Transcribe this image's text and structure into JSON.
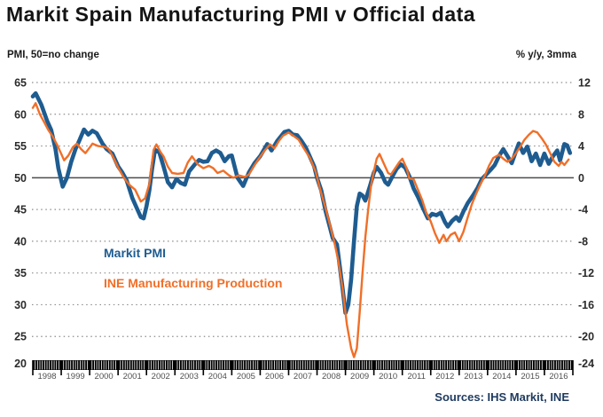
{
  "header": {
    "title": "Markit Spain Manufacturing PMI v Official data"
  },
  "axis_captions": {
    "left": "PMI, 50=no change",
    "right": "% y/y, 3mma"
  },
  "legend": {
    "pmi": "Markit PMI",
    "ine": "INE Manufacturing Production"
  },
  "source": "Sources: IHS Markit, INE",
  "colors": {
    "pmi": "#1e5c90",
    "ine": "#f06f28",
    "grid": "#8c8c8c",
    "zero_line": "#4d4d4d",
    "axis_bar": "#000000",
    "tick_label": "#4f4f4f",
    "axis_value": "#2b2b2b",
    "source_text": "#1e3a5f",
    "title_text": "#141414"
  },
  "chart_data": {
    "type": "line",
    "title": "Markit Spain Manufacturing PMI v Official data",
    "left_axis": {
      "label": "PMI, 50=no change",
      "ticks": [
        65,
        60,
        55,
        50,
        45,
        40,
        35,
        30,
        25,
        20
      ],
      "range": [
        20,
        65
      ]
    },
    "right_axis": {
      "label": "% y/y, 3mma",
      "ticks": [
        12,
        8,
        4,
        0,
        -4,
        -8,
        -12,
        -16,
        -20,
        -24
      ],
      "range": [
        -24,
        12
      ]
    },
    "x_axis": {
      "years": [
        "1998",
        "1999",
        "2000",
        "2001",
        "2002",
        "2003",
        "2004",
        "2005",
        "2006",
        "2007",
        "2008",
        "2009",
        "2010",
        "2011",
        "2012",
        "2013",
        "2014",
        "2015",
        "2016"
      ],
      "range": [
        1998,
        2017
      ]
    },
    "zero_reference": {
      "left": 50,
      "right": 0
    },
    "grid": "dotted horizontal",
    "legend_position": "inside-left",
    "series": [
      {
        "name": "Markit PMI",
        "axis": "left",
        "color": "#1e5c90",
        "points": [
          [
            1998.0,
            62.8
          ],
          [
            1998.1,
            63.3
          ],
          [
            1998.3,
            61.5
          ],
          [
            1998.5,
            59.0
          ],
          [
            1998.65,
            57.5
          ],
          [
            1998.8,
            54.5
          ],
          [
            1998.9,
            51.5
          ],
          [
            1999.05,
            48.6
          ],
          [
            1999.2,
            50.0
          ],
          [
            1999.35,
            52.5
          ],
          [
            1999.5,
            54.5
          ],
          [
            1999.65,
            56.0
          ],
          [
            1999.8,
            57.6
          ],
          [
            1999.95,
            56.8
          ],
          [
            2000.1,
            57.4
          ],
          [
            2000.25,
            57.0
          ],
          [
            2000.45,
            55.4
          ],
          [
            2000.6,
            54.5
          ],
          [
            2000.8,
            53.8
          ],
          [
            2001.0,
            51.8
          ],
          [
            2001.15,
            50.8
          ],
          [
            2001.3,
            49.6
          ],
          [
            2001.5,
            46.8
          ],
          [
            2001.65,
            45.3
          ],
          [
            2001.8,
            43.8
          ],
          [
            2001.9,
            43.6
          ],
          [
            2002.0,
            45.5
          ],
          [
            2002.1,
            48.0
          ],
          [
            2002.2,
            51.5
          ],
          [
            2002.3,
            54.4
          ],
          [
            2002.45,
            54.0
          ],
          [
            2002.6,
            51.8
          ],
          [
            2002.75,
            49.3
          ],
          [
            2002.9,
            48.5
          ],
          [
            2003.05,
            49.8
          ],
          [
            2003.2,
            49.2
          ],
          [
            2003.35,
            48.9
          ],
          [
            2003.5,
            51.0
          ],
          [
            2003.7,
            52.1
          ],
          [
            2003.85,
            52.8
          ],
          [
            2004.0,
            52.5
          ],
          [
            2004.15,
            52.6
          ],
          [
            2004.3,
            53.9
          ],
          [
            2004.45,
            54.3
          ],
          [
            2004.6,
            53.9
          ],
          [
            2004.75,
            52.6
          ],
          [
            2004.9,
            53.4
          ],
          [
            2005.0,
            53.5
          ],
          [
            2005.2,
            50.0
          ],
          [
            2005.4,
            48.7
          ],
          [
            2005.6,
            50.8
          ],
          [
            2005.8,
            52.3
          ],
          [
            2006.0,
            53.4
          ],
          [
            2006.25,
            55.3
          ],
          [
            2006.4,
            54.3
          ],
          [
            2006.6,
            55.8
          ],
          [
            2006.85,
            57.2
          ],
          [
            2007.0,
            57.4
          ],
          [
            2007.15,
            56.8
          ],
          [
            2007.3,
            56.7
          ],
          [
            2007.45,
            55.8
          ],
          [
            2007.6,
            54.8
          ],
          [
            2007.75,
            53.3
          ],
          [
            2007.9,
            51.8
          ],
          [
            2008.0,
            50.0
          ],
          [
            2008.15,
            48.0
          ],
          [
            2008.3,
            44.8
          ],
          [
            2008.45,
            42.2
          ],
          [
            2008.55,
            40.5
          ],
          [
            2008.7,
            39.5
          ],
          [
            2008.8,
            36.0
          ],
          [
            2008.9,
            32.5
          ],
          [
            2009.0,
            28.7
          ],
          [
            2009.1,
            30.0
          ],
          [
            2009.2,
            34.0
          ],
          [
            2009.3,
            40.0
          ],
          [
            2009.4,
            45.5
          ],
          [
            2009.5,
            47.5
          ],
          [
            2009.6,
            47.2
          ],
          [
            2009.7,
            46.4
          ],
          [
            2009.85,
            48.5
          ],
          [
            2010.0,
            50.8
          ],
          [
            2010.1,
            51.7
          ],
          [
            2010.25,
            50.8
          ],
          [
            2010.4,
            49.3
          ],
          [
            2010.5,
            48.9
          ],
          [
            2010.65,
            50.2
          ],
          [
            2010.8,
            51.4
          ],
          [
            2010.95,
            52.1
          ],
          [
            2011.1,
            51.6
          ],
          [
            2011.25,
            50.2
          ],
          [
            2011.4,
            48.3
          ],
          [
            2011.55,
            47.0
          ],
          [
            2011.7,
            45.5
          ],
          [
            2011.9,
            43.6
          ],
          [
            2012.05,
            44.3
          ],
          [
            2012.2,
            44.1
          ],
          [
            2012.35,
            44.5
          ],
          [
            2012.5,
            43.0
          ],
          [
            2012.6,
            42.3
          ],
          [
            2012.75,
            43.2
          ],
          [
            2012.9,
            43.8
          ],
          [
            2013.0,
            43.2
          ],
          [
            2013.15,
            44.7
          ],
          [
            2013.3,
            46.0
          ],
          [
            2013.5,
            47.3
          ],
          [
            2013.65,
            48.4
          ],
          [
            2013.8,
            49.8
          ],
          [
            2013.95,
            50.5
          ],
          [
            2014.1,
            51.2
          ],
          [
            2014.25,
            52.0
          ],
          [
            2014.4,
            53.4
          ],
          [
            2014.55,
            54.5
          ],
          [
            2014.7,
            53.4
          ],
          [
            2014.85,
            52.3
          ],
          [
            2015.0,
            54.2
          ],
          [
            2015.1,
            55.4
          ],
          [
            2015.25,
            53.9
          ],
          [
            2015.4,
            54.9
          ],
          [
            2015.55,
            52.6
          ],
          [
            2015.7,
            53.8
          ],
          [
            2015.85,
            52.0
          ],
          [
            2016.0,
            53.8
          ],
          [
            2016.15,
            52.2
          ],
          [
            2016.3,
            53.4
          ],
          [
            2016.45,
            54.3
          ],
          [
            2016.55,
            52.7
          ],
          [
            2016.7,
            55.3
          ],
          [
            2016.8,
            55.1
          ],
          [
            2016.9,
            53.9
          ]
        ]
      },
      {
        "name": "INE Manufacturing Production",
        "axis": "right",
        "color": "#f06f28",
        "points": [
          [
            1998.0,
            8.8
          ],
          [
            1998.1,
            9.4
          ],
          [
            1998.25,
            8.0
          ],
          [
            1998.4,
            7.0
          ],
          [
            1998.55,
            6.0
          ],
          [
            1998.7,
            5.2
          ],
          [
            1998.85,
            4.2
          ],
          [
            1999.0,
            3.0
          ],
          [
            1999.1,
            2.2
          ],
          [
            1999.25,
            2.8
          ],
          [
            1999.4,
            3.8
          ],
          [
            1999.55,
            4.3
          ],
          [
            1999.7,
            3.6
          ],
          [
            1999.85,
            3.1
          ],
          [
            2000.0,
            3.8
          ],
          [
            2000.1,
            4.3
          ],
          [
            2000.3,
            4.0
          ],
          [
            2000.5,
            3.9
          ],
          [
            2000.65,
            3.7
          ],
          [
            2000.8,
            2.8
          ],
          [
            2001.0,
            1.3
          ],
          [
            2001.2,
            0.0
          ],
          [
            2001.4,
            -0.9
          ],
          [
            2001.6,
            -1.5
          ],
          [
            2001.8,
            -3.0
          ],
          [
            2001.95,
            -2.6
          ],
          [
            2002.1,
            -0.8
          ],
          [
            2002.25,
            3.5
          ],
          [
            2002.35,
            4.2
          ],
          [
            2002.5,
            3.2
          ],
          [
            2002.6,
            2.7
          ],
          [
            2002.75,
            1.4
          ],
          [
            2002.9,
            0.6
          ],
          [
            2003.1,
            0.5
          ],
          [
            2003.3,
            0.6
          ],
          [
            2003.45,
            1.9
          ],
          [
            2003.6,
            2.7
          ],
          [
            2003.8,
            1.7
          ],
          [
            2004.0,
            1.2
          ],
          [
            2004.2,
            1.5
          ],
          [
            2004.35,
            1.2
          ],
          [
            2004.5,
            0.6
          ],
          [
            2004.7,
            0.9
          ],
          [
            2004.9,
            0.3
          ],
          [
            2005.05,
            0.0
          ],
          [
            2005.25,
            0.3
          ],
          [
            2005.45,
            0.1
          ],
          [
            2005.6,
            0.4
          ],
          [
            2005.75,
            1.3
          ],
          [
            2005.95,
            2.4
          ],
          [
            2006.15,
            3.4
          ],
          [
            2006.35,
            4.2
          ],
          [
            2006.5,
            3.7
          ],
          [
            2006.65,
            4.6
          ],
          [
            2006.8,
            5.3
          ],
          [
            2007.0,
            5.7
          ],
          [
            2007.2,
            5.2
          ],
          [
            2007.35,
            4.8
          ],
          [
            2007.5,
            3.9
          ],
          [
            2007.75,
            2.5
          ],
          [
            2007.95,
            0.8
          ],
          [
            2008.1,
            -1.3
          ],
          [
            2008.3,
            -3.8
          ],
          [
            2008.45,
            -5.9
          ],
          [
            2008.6,
            -8.0
          ],
          [
            2008.75,
            -10.5
          ],
          [
            2008.9,
            -14.0
          ],
          [
            2009.05,
            -18.5
          ],
          [
            2009.2,
            -21.5
          ],
          [
            2009.3,
            -22.6
          ],
          [
            2009.4,
            -21.5
          ],
          [
            2009.5,
            -17.0
          ],
          [
            2009.6,
            -12.0
          ],
          [
            2009.7,
            -7.5
          ],
          [
            2009.8,
            -4.0
          ],
          [
            2009.9,
            -1.0
          ],
          [
            2010.0,
            0.8
          ],
          [
            2010.1,
            2.4
          ],
          [
            2010.2,
            3.0
          ],
          [
            2010.35,
            1.8
          ],
          [
            2010.5,
            0.6
          ],
          [
            2010.6,
            0.4
          ],
          [
            2010.75,
            1.2
          ],
          [
            2010.9,
            2.0
          ],
          [
            2011.0,
            2.4
          ],
          [
            2011.15,
            1.2
          ],
          [
            2011.25,
            -0.1
          ],
          [
            2011.4,
            -0.2
          ],
          [
            2011.55,
            -1.5
          ],
          [
            2011.7,
            -2.8
          ],
          [
            2011.85,
            -4.5
          ],
          [
            2012.0,
            -5.5
          ],
          [
            2012.15,
            -7.0
          ],
          [
            2012.3,
            -8.2
          ],
          [
            2012.45,
            -7.2
          ],
          [
            2012.55,
            -8.0
          ],
          [
            2012.7,
            -7.2
          ],
          [
            2012.85,
            -6.9
          ],
          [
            2013.0,
            -8.0
          ],
          [
            2013.15,
            -6.8
          ],
          [
            2013.3,
            -5.0
          ],
          [
            2013.45,
            -3.3
          ],
          [
            2013.6,
            -2.0
          ],
          [
            2013.75,
            -0.8
          ],
          [
            2013.9,
            0.2
          ],
          [
            2014.05,
            1.5
          ],
          [
            2014.2,
            2.5
          ],
          [
            2014.4,
            2.9
          ],
          [
            2014.55,
            2.4
          ],
          [
            2014.7,
            2.0
          ],
          [
            2014.85,
            2.4
          ],
          [
            2015.0,
            3.1
          ],
          [
            2015.15,
            3.9
          ],
          [
            2015.3,
            4.8
          ],
          [
            2015.45,
            5.4
          ],
          [
            2015.6,
            5.9
          ],
          [
            2015.75,
            5.7
          ],
          [
            2015.9,
            5.0
          ],
          [
            2016.05,
            4.2
          ],
          [
            2016.2,
            3.1
          ],
          [
            2016.35,
            2.0
          ],
          [
            2016.5,
            1.5
          ],
          [
            2016.6,
            2.0
          ],
          [
            2016.7,
            1.6
          ],
          [
            2016.85,
            2.3
          ]
        ]
      }
    ]
  }
}
